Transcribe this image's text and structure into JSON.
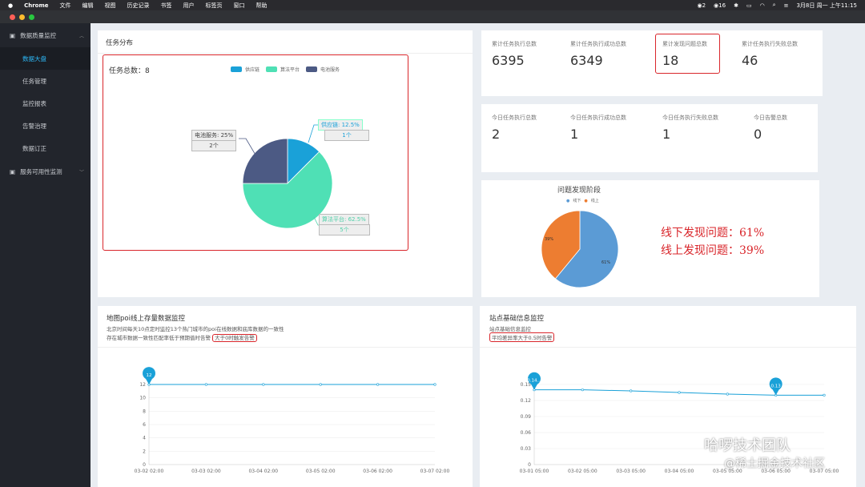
{
  "menubar": {
    "app": "Chrome",
    "items": [
      "文件",
      "编辑",
      "视图",
      "历史记录",
      "书签",
      "用户",
      "标签页",
      "窗口",
      "帮助"
    ],
    "badge_1": "2",
    "badge_2": "16",
    "clock": "3月8日 周一 上午11:15"
  },
  "sidebar": {
    "group1": "数据质量监控",
    "items": [
      "数据大盘",
      "任务管理",
      "监控报表",
      "告警治理",
      "数据订正"
    ],
    "active_index": 0,
    "group2": "服务可用性监测"
  },
  "task_card": {
    "title": "任务分布",
    "total_label": "任务总数：8",
    "legend": [
      {
        "name": "供应链",
        "color": "#1aa1d8"
      },
      {
        "name": "算法平台",
        "color": "#4fe0b5"
      },
      {
        "name": "电池服务",
        "color": "#4c5a84"
      }
    ],
    "callouts": [
      {
        "label": "供应链: 12.5%",
        "count": "1个"
      },
      {
        "label": "算法平台: 62.5%",
        "count": "5个"
      },
      {
        "label": "电池服务: 25%",
        "count": "2个"
      }
    ]
  },
  "stats_total": [
    {
      "label": "累计任务执行总数",
      "value": "6395"
    },
    {
      "label": "累计任务执行成功总数",
      "value": "6349"
    },
    {
      "label": "累计发现问题总数",
      "value": "18"
    },
    {
      "label": "累计任务执行失败总数",
      "value": "46"
    }
  ],
  "stats_today": [
    {
      "label": "今日任务执行总数",
      "value": "2"
    },
    {
      "label": "今日任务执行成功总数",
      "value": "1"
    },
    {
      "label": "今日任务执行失败总数",
      "value": "1"
    },
    {
      "label": "今日告警总数",
      "value": "0"
    }
  ],
  "problem_card": {
    "title": "问题发现阶段",
    "legend": [
      {
        "name": "线下",
        "color": "#5b9bd5"
      },
      {
        "name": "线上",
        "color": "#ed7d31"
      }
    ],
    "pct_online": "39%",
    "pct_offline": "61%",
    "annotation_line1": "线下发现问题：61%",
    "annotation_line2": "线上发现问题：39%"
  },
  "poi_card": {
    "title": "地图poi线上存量数据监控",
    "desc1": "北京时间每天10点定时监控13个热门城市的poi在线数据和底库数据的一致性",
    "desc2": "存在城市数据一致性匹配率低于预期值时告警",
    "desc_highlight": "大于0时触发告警",
    "marker": "12"
  },
  "site_card": {
    "title": "站点基础信息监控",
    "desc1": "站点基础信息监控",
    "desc_highlight": "平均差异率大于0.5时告警",
    "marker1": "0.14...",
    "marker2": "0.13"
  },
  "chart_data": [
    {
      "type": "pie",
      "categories": [
        "供应链",
        "算法平台",
        "电池服务"
      ],
      "values": [
        1,
        5,
        2
      ],
      "colors": [
        "#1aa1d8",
        "#4fe0b5",
        "#4c5a84"
      ]
    },
    {
      "type": "pie",
      "title": "问题发现阶段",
      "categories": [
        "线下",
        "线上"
      ],
      "values": [
        61,
        39
      ],
      "colors": [
        "#5b9bd5",
        "#ed7d31"
      ]
    },
    {
      "type": "line",
      "title": "地图poi线上存量数据监控",
      "x": [
        "03-02 02:00",
        "03-03 02:00",
        "03-04 02:00",
        "03-05 02:00",
        "03-06 02:00",
        "03-07 02:00"
      ],
      "series": [
        {
          "values": [
            12,
            12,
            12,
            12,
            12,
            12
          ]
        }
      ],
      "yticks": [
        0,
        2,
        4,
        6,
        8,
        10,
        12
      ],
      "ylim": [
        0,
        12
      ],
      "color": "#1aa1d8"
    },
    {
      "type": "line",
      "title": "站点基础信息监控",
      "x": [
        "03-01 05:00",
        "03-02 05:00",
        "03-03 05:00",
        "03-04 05:00",
        "03-05 05:00",
        "03-06 05:00",
        "03-07 05:00"
      ],
      "series": [
        {
          "values": [
            0.14,
            0.14,
            0.138,
            0.135,
            0.132,
            0.13,
            0.13
          ]
        }
      ],
      "yticks": [
        0,
        0.03,
        0.06,
        0.09,
        0.12,
        0.15
      ],
      "ylim": [
        0,
        0.15
      ],
      "color": "#1aa1d8"
    }
  ],
  "watermark": {
    "line1": "哈啰技术团队",
    "line2": "@稀土掘金技术社区"
  }
}
